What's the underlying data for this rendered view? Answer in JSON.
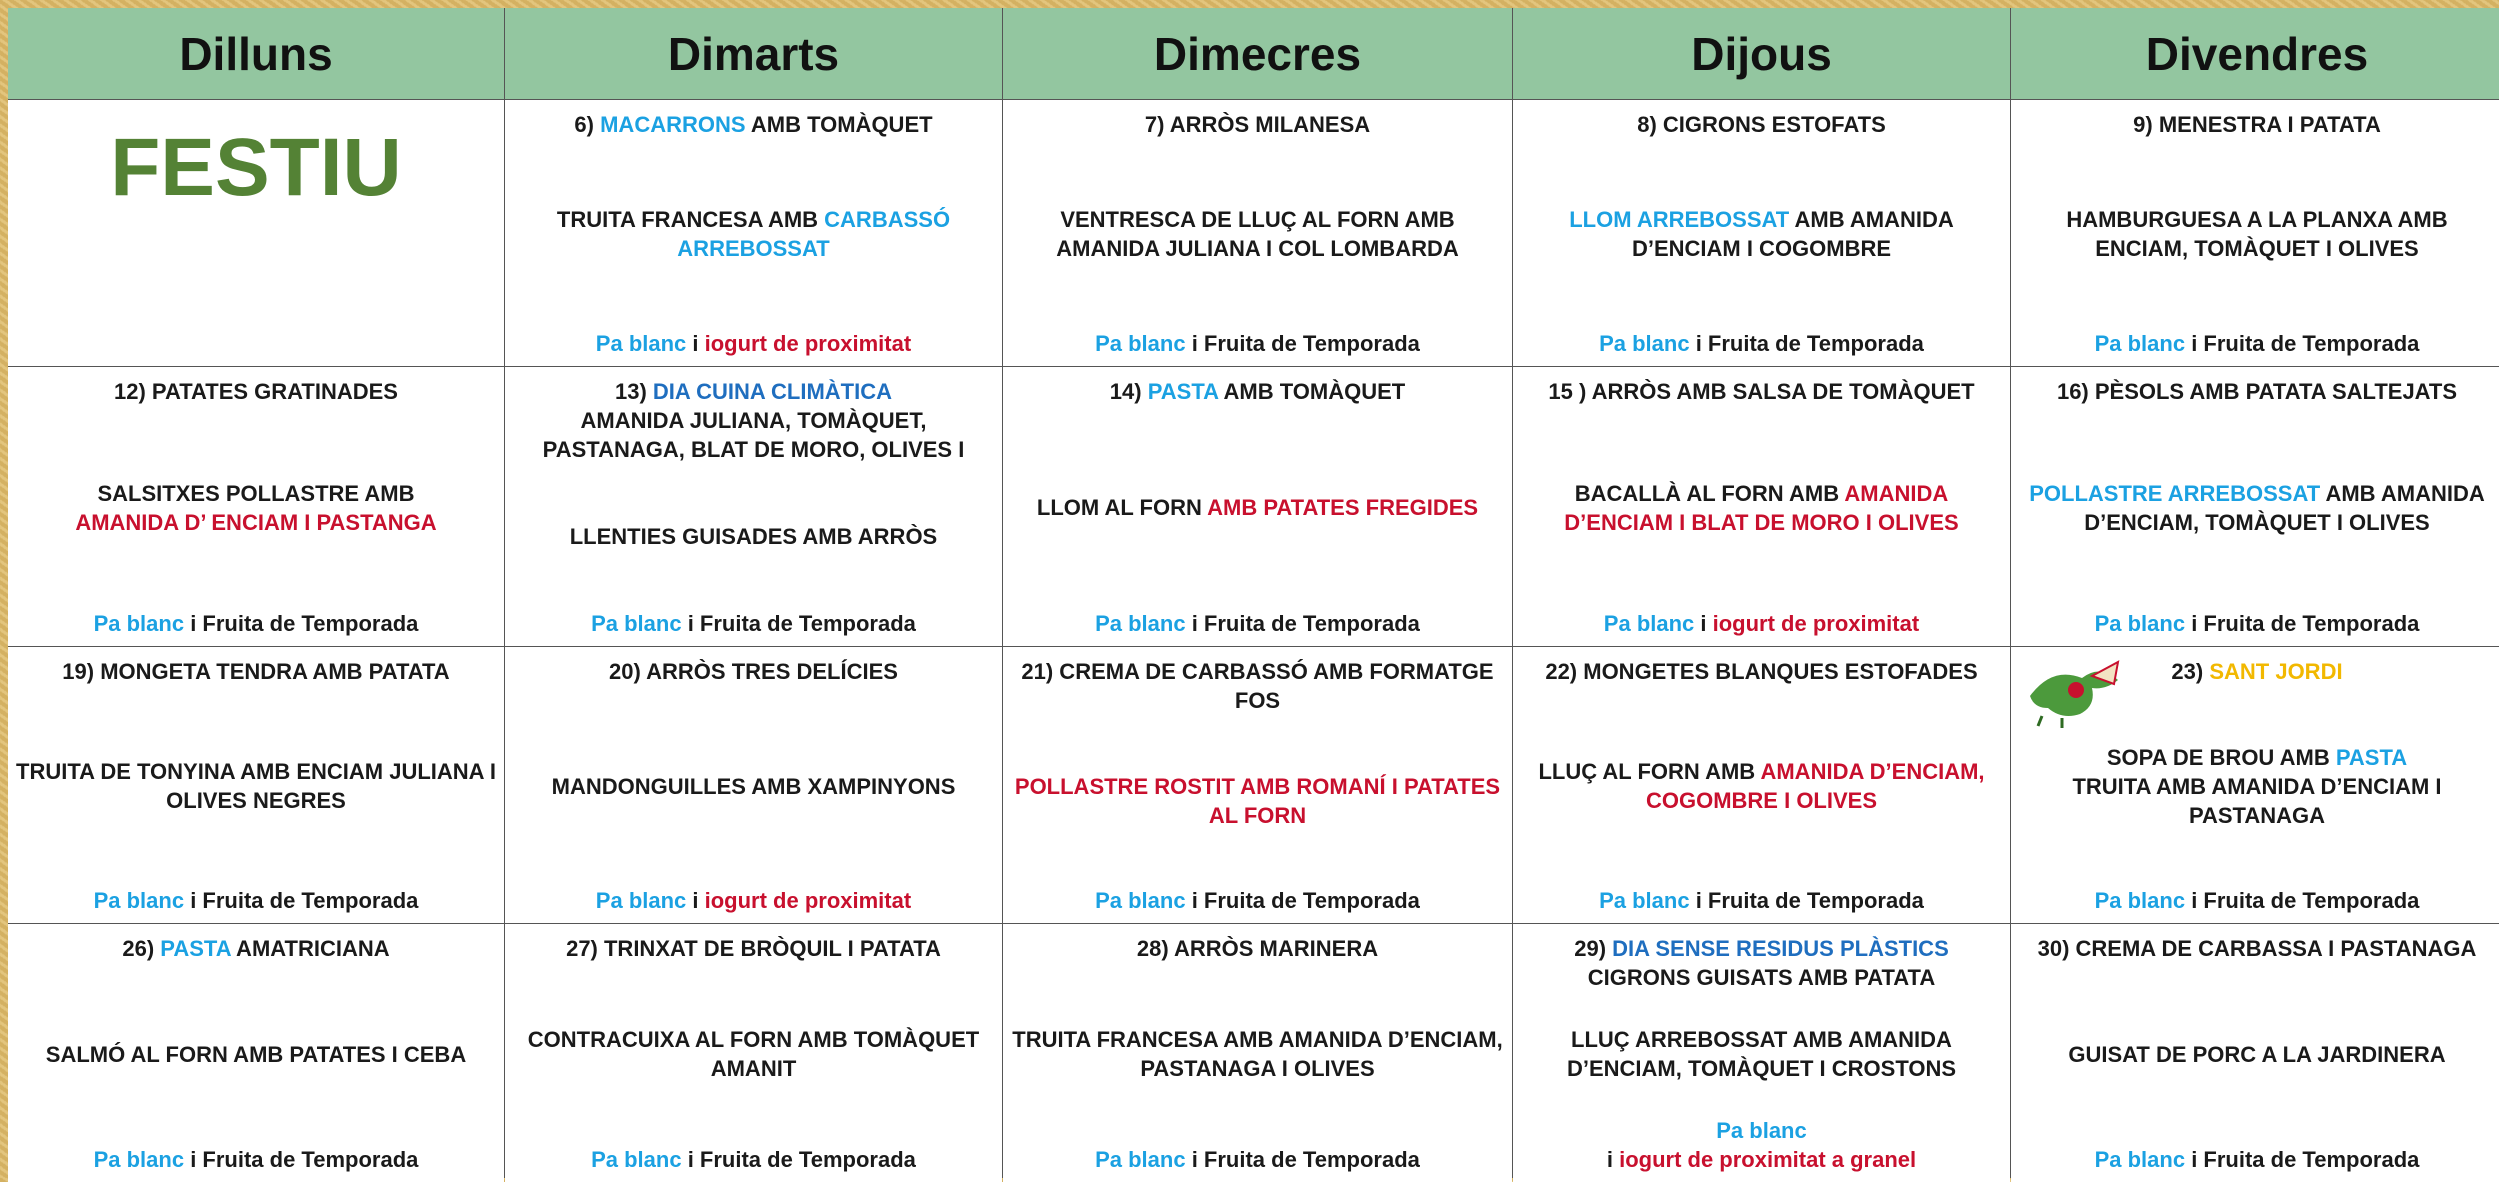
{
  "header": {
    "days": [
      "Dilluns",
      "Dimarts",
      "Dimecres",
      "Dijous",
      "Divendres"
    ]
  },
  "weeks": [
    {
      "cells": [
        {
          "holiday": "FESTIU"
        },
        {
          "blocks": [
            [
              [
                {
                  "t": "6) "
                },
                {
                  "t": "MACARRONS",
                  "c": "#1ba1e2"
                },
                {
                  "t": " AMB TOMÀQUET"
                }
              ]
            ],
            [
              [
                {
                  "t": "TRUITA FRANCESA AMB "
                },
                {
                  "t": "CARBASSÓ ARREBOSSAT",
                  "c": "#1ba1e2"
                }
              ]
            ],
            [
              [
                {
                  "t": "Pa blanc",
                  "c": "#1ba1e2"
                },
                {
                  "t": " i "
                },
                {
                  "t": "iogurt de proximitat",
                  "c": "#c8102e"
                }
              ]
            ]
          ]
        },
        {
          "blocks": [
            [
              [
                {
                  "t": "7) ARRÒS MILANESA"
                }
              ]
            ],
            [
              [
                {
                  "t": "VENTRESCA DE LLUÇ AL FORN AMB AMANIDA JULIANA I COL LOMBARDA"
                }
              ]
            ],
            [
              [
                {
                  "t": "Pa blanc",
                  "c": "#1ba1e2"
                },
                {
                  "t": " i Fruita de Temporada"
                }
              ]
            ]
          ]
        },
        {
          "blocks": [
            [
              [
                {
                  "t": "8) CIGRONS ESTOFATS"
                }
              ]
            ],
            [
              [
                {
                  "t": "LLOM ARREBOSSAT",
                  "c": "#1ba1e2"
                },
                {
                  "t": " AMB AMANIDA D’ENCIAM I COGOMBRE"
                }
              ]
            ],
            [
              [
                {
                  "t": "Pa blanc",
                  "c": "#1ba1e2"
                },
                {
                  "t": " i Fruita de Temporada"
                }
              ]
            ]
          ]
        },
        {
          "blocks": [
            [
              [
                {
                  "t": "9) MENESTRA I PATATA"
                }
              ]
            ],
            [
              [
                {
                  "t": "HAMBURGUESA A LA PLANXA AMB ENCIAM, TOMÀQUET I OLIVES"
                }
              ]
            ],
            [
              [
                {
                  "t": "Pa blanc",
                  "c": "#1ba1e2"
                },
                {
                  "t": " i Fruita de Temporada"
                }
              ]
            ]
          ]
        }
      ]
    },
    {
      "cells": [
        {
          "blocks": [
            [
              [
                {
                  "t": "12) PATATES GRATINADES"
                }
              ]
            ],
            [
              [
                {
                  "t": "SALSITXES POLLASTRE AMB"
                }
              ],
              [
                {
                  "t": "AMANIDA D’ ENCIAM I PASTANGA",
                  "c": "#c8102e"
                }
              ]
            ],
            [
              [
                {
                  "t": "Pa blanc",
                  "c": "#1ba1e2"
                },
                {
                  "t": " i Fruita de Temporada"
                }
              ]
            ]
          ]
        },
        {
          "blocks": [
            [
              [
                {
                  "t": "13) "
                },
                {
                  "t": "DIA CUINA CLIMÀTICA",
                  "c": "#1f6ebf"
                }
              ],
              [
                {
                  "t": "AMANIDA JULIANA, TOMÀQUET, PASTANAGA, BLAT DE MORO, OLIVES I"
                }
              ]
            ],
            [
              [
                {
                  "t": "LLENTIES GUISADES AMB ARRÒS"
                }
              ]
            ],
            [
              [
                {
                  "t": "Pa blanc",
                  "c": "#1ba1e2"
                },
                {
                  "t": " i Fruita de Temporada"
                }
              ]
            ]
          ]
        },
        {
          "blocks": [
            [
              [
                {
                  "t": "14) "
                },
                {
                  "t": "PASTA",
                  "c": "#1ba1e2"
                },
                {
                  "t": " AMB TOMÀQUET"
                }
              ]
            ],
            [
              [
                {
                  "t": "LLOM AL FORN "
                },
                {
                  "t": "AMB PATATES FREGIDES",
                  "c": "#c8102e"
                }
              ]
            ],
            [
              [
                {
                  "t": "Pa blanc",
                  "c": "#1ba1e2"
                },
                {
                  "t": " i Fruita de Temporada"
                }
              ]
            ]
          ]
        },
        {
          "blocks": [
            [
              [
                {
                  "t": "15 ) ARRÒS AMB SALSA DE TOMÀQUET"
                }
              ]
            ],
            [
              [
                {
                  "t": "BACALLÀ AL FORN AMB "
                },
                {
                  "t": "AMANIDA D’ENCIAM I BLAT DE MORO I OLIVES",
                  "c": "#c8102e"
                }
              ]
            ],
            [
              [
                {
                  "t": "Pa blanc",
                  "c": "#1ba1e2"
                },
                {
                  "t": " i "
                },
                {
                  "t": "iogurt de proximitat",
                  "c": "#c8102e"
                }
              ]
            ]
          ]
        },
        {
          "blocks": [
            [
              [
                {
                  "t": "16)  PÈSOLS AMB PATATA SALTEJATS"
                }
              ]
            ],
            [
              [
                {
                  "t": "POLLASTRE ARREBOSSAT",
                  "c": "#1ba1e2"
                },
                {
                  "t": " AMB AMANIDA D’ENCIAM, TOMÀQUET I OLIVES"
                }
              ]
            ],
            [
              [
                {
                  "t": "Pa blanc",
                  "c": "#1ba1e2"
                },
                {
                  "t": " i Fruita de Temporada"
                }
              ]
            ]
          ]
        }
      ]
    },
    {
      "cells": [
        {
          "blocks": [
            [
              [
                {
                  "t": "19) MONGETA TENDRA AMB PATATA"
                }
              ]
            ],
            [
              [
                {
                  "t": "TRUITA DE TONYINA AMB ENCIAM JULIANA I OLIVES NEGRES"
                }
              ]
            ],
            [
              [
                {
                  "t": "Pa blanc",
                  "c": "#1ba1e2"
                },
                {
                  "t": " i Fruita de Temporada"
                }
              ]
            ]
          ]
        },
        {
          "blocks": [
            [
              [
                {
                  "t": "20) ARRÒS TRES DELÍCIES"
                }
              ]
            ],
            [
              [
                {
                  "t": "MANDONGUILLES AMB XAMPINYONS"
                }
              ]
            ],
            [
              [
                {
                  "t": "Pa blanc",
                  "c": "#1ba1e2"
                },
                {
                  "t": " i "
                },
                {
                  "t": "iogurt de proximitat",
                  "c": "#c8102e"
                }
              ]
            ]
          ]
        },
        {
          "blocks": [
            [
              [
                {
                  "t": "21) CREMA DE CARBASSÓ AMB FORMATGE FOS"
                }
              ]
            ],
            [
              [
                {
                  "t": "POLLASTRE ROSTIT AMB ROMANÍ I PATATES AL FORN",
                  "c": "#c8102e"
                }
              ]
            ],
            [
              [
                {
                  "t": "Pa blanc",
                  "c": "#1ba1e2"
                },
                {
                  "t": " i Fruita de Temporada"
                }
              ]
            ]
          ]
        },
        {
          "blocks": [
            [
              [
                {
                  "t": "22) MONGETES BLANQUES ESTOFADES"
                }
              ]
            ],
            [
              [
                {
                  "t": "LLUÇ AL FORN AMB "
                },
                {
                  "t": "AMANIDA D’ENCIAM, COGOMBRE I OLIVES",
                  "c": "#c8102e"
                }
              ]
            ],
            [
              [
                {
                  "t": "Pa blanc",
                  "c": "#1ba1e2"
                },
                {
                  "t": " i Fruita de Temporada"
                }
              ]
            ]
          ]
        },
        {
          "blocks": [
            [
              [
                {
                  "t": "23) "
                },
                {
                  "t": "SANT JORDI",
                  "c": "#f2b800"
                }
              ]
            ],
            [
              [
                {
                  "t": "SOPA DE BROU AMB "
                },
                {
                  "t": "PASTA",
                  "c": "#1ba1e2"
                }
              ],
              [
                {
                  "t": "TRUITA AMB AMANIDA D’ENCIAM I PASTANAGA"
                }
              ]
            ],
            [
              [
                {
                  "t": "Pa blanc",
                  "c": "#1ba1e2"
                },
                {
                  "t": " i Fruita de Temporada"
                }
              ]
            ]
          ]
        }
      ]
    },
    {
      "cells": [
        {
          "blocks": [
            [
              [
                {
                  "t": "26) "
                },
                {
                  "t": "PASTA",
                  "c": "#1ba1e2"
                },
                {
                  "t": " AMATRICIANA"
                }
              ]
            ],
            [
              [
                {
                  "t": "SALMÓ AL FORN AMB PATATES I CEBA"
                }
              ]
            ],
            [
              [
                {
                  "t": "Pa blanc",
                  "c": "#1ba1e2"
                },
                {
                  "t": " i Fruita de Temporada"
                }
              ]
            ]
          ]
        },
        {
          "blocks": [
            [
              [
                {
                  "t": "27) TRINXAT DE BRÒQUIL I PATATA"
                }
              ]
            ],
            [
              [
                {
                  "t": "CONTRACUIXA AL FORN AMB TOMÀQUET AMANIT"
                }
              ]
            ],
            [
              [
                {
                  "t": "Pa blanc",
                  "c": "#1ba1e2"
                },
                {
                  "t": " i Fruita de Temporada"
                }
              ]
            ]
          ]
        },
        {
          "blocks": [
            [
              [
                {
                  "t": "28) ARRÒS MARINERA"
                }
              ]
            ],
            [
              [
                {
                  "t": "TRUITA FRANCESA AMB AMANIDA D’ENCIAM, PASTANAGA I OLIVES"
                }
              ]
            ],
            [
              [
                {
                  "t": "Pa blanc",
                  "c": "#1ba1e2"
                },
                {
                  "t": " i Fruita de Temporada"
                }
              ]
            ]
          ]
        },
        {
          "blocks": [
            [
              [
                {
                  "t": "29) "
                },
                {
                  "t": "DIA SENSE RESIDUS PLÀSTICS",
                  "c": "#1f6ebf"
                }
              ],
              [
                {
                  "t": "CIGRONS GUISATS AMB PATATA"
                }
              ]
            ],
            [
              [
                {
                  "t": "LLUÇ ARREBOSSAT AMB AMANIDA D’ENCIAM, TOMÀQUET I CROSTONS"
                }
              ]
            ],
            [
              [
                {
                  "t": "Pa blanc",
                  "c": "#1ba1e2"
                }
              ],
              [
                {
                  "t": "i "
                },
                {
                  "t": "iogurt de proximitat a granel",
                  "c": "#c8102e"
                }
              ]
            ]
          ]
        },
        {
          "blocks": [
            [
              [
                {
                  "t": "30) CREMA DE CARBASSA I PASTANAGA"
                }
              ]
            ],
            [
              [
                {
                  "t": "GUISAT DE PORC A LA JARDINERA"
                }
              ]
            ],
            [
              [
                {
                  "t": "Pa blanc",
                  "c": "#1ba1e2"
                },
                {
                  "t": " i Fruita de Temporada"
                }
              ]
            ]
          ]
        }
      ]
    }
  ]
}
